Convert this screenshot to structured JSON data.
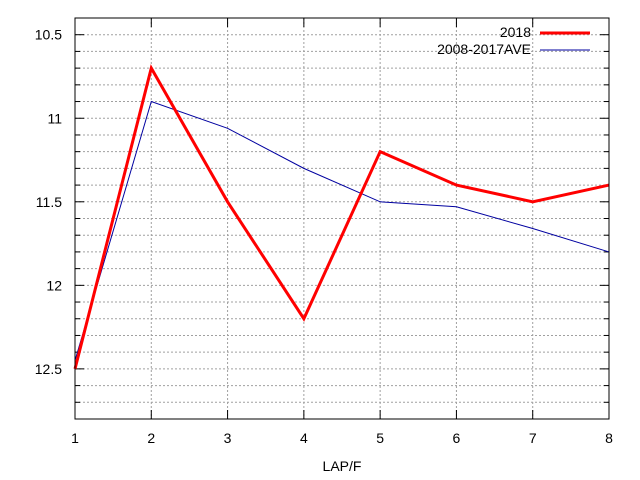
{
  "chart_data": {
    "type": "line",
    "x": [
      1,
      2,
      3,
      4,
      5,
      6,
      7,
      8
    ],
    "xlabel": "LAP/F",
    "ylabel": "",
    "xlim": [
      1,
      8
    ],
    "ylim": [
      12.8,
      10.4
    ],
    "y_inverted": true,
    "x_ticks": [
      "1",
      "2",
      "3",
      "4",
      "5",
      "6",
      "7",
      "8"
    ],
    "y_ticks": [
      10.5,
      11,
      11.5,
      12,
      12.5
    ],
    "y_tick_labels": [
      "10.5",
      "11",
      "11.5",
      "12",
      "12.5"
    ],
    "y_minor_step": 0.1,
    "grid": true,
    "legend_position": "top-right",
    "series": [
      {
        "name": "2018",
        "values": [
          12.5,
          10.7,
          11.5,
          12.2,
          11.2,
          11.4,
          11.5,
          11.4
        ],
        "color": "#ff0000"
      },
      {
        "name": "2008-2017AVE",
        "values": [
          12.45,
          10.9,
          11.06,
          11.3,
          11.5,
          11.53,
          11.66,
          11.8
        ],
        "color": "#0000a0"
      }
    ]
  }
}
